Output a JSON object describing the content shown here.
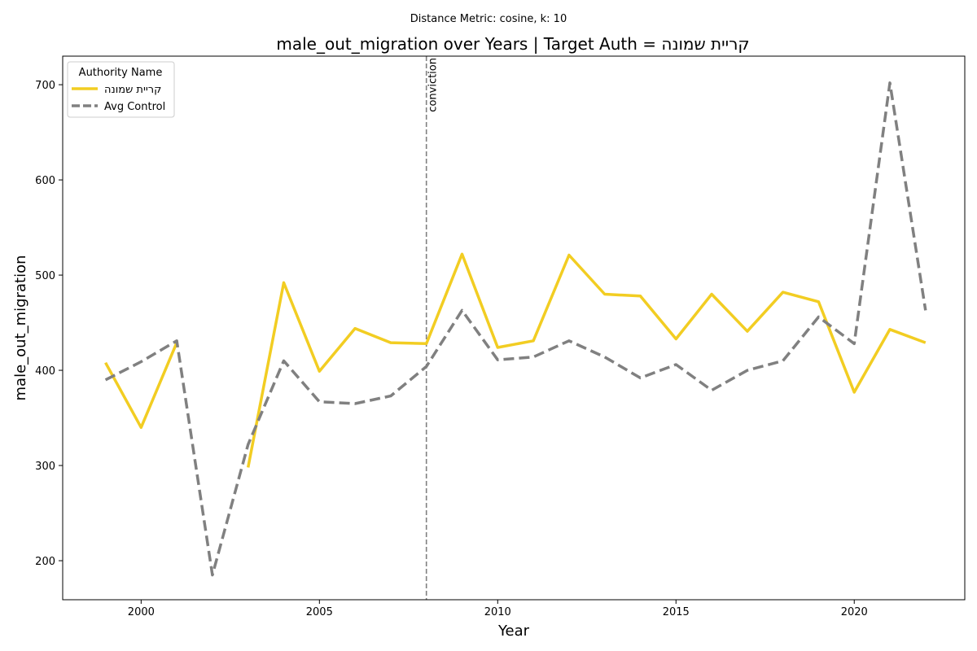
{
  "chart_data": {
    "type": "line",
    "suptitle": "Distance Metric: cosine, k: 10",
    "title": "male_out_migration over Years | Target Auth = קריית שמונה",
    "xlabel": "Year",
    "ylabel": "male_out_migration",
    "xlim": [
      1997.8,
      2023.1
    ],
    "ylim": [
      159,
      730
    ],
    "xticks": [
      2000,
      2005,
      2010,
      2015,
      2020
    ],
    "yticks": [
      200,
      300,
      400,
      500,
      600,
      700
    ],
    "grid": false,
    "legend": {
      "title": "Authority Name",
      "placement": "top-left"
    },
    "x": [
      1999,
      2000,
      2001,
      2002,
      2003,
      2004,
      2005,
      2006,
      2007,
      2008,
      2009,
      2010,
      2011,
      2012,
      2013,
      2014,
      2015,
      2016,
      2017,
      2018,
      2019,
      2020,
      2021,
      2022
    ],
    "series": [
      {
        "name": "קריית שמונה",
        "color": "#f2cd22",
        "style": "solid",
        "values": [
          408,
          340,
          429,
          null,
          298,
          492,
          399,
          444,
          429,
          428,
          522,
          424,
          431,
          521,
          480,
          478,
          433,
          480,
          441,
          482,
          472,
          377,
          443,
          429
        ]
      },
      {
        "name": "Avg Control",
        "color": "#808080",
        "style": "dashed",
        "values": [
          390,
          409,
          431,
          185,
          322,
          410,
          367,
          365,
          373,
          404,
          463,
          411,
          414,
          431,
          414,
          392,
          406,
          379,
          400,
          410,
          456,
          428,
          702,
          463
        ]
      }
    ],
    "annotations": [
      {
        "type": "vline",
        "x": 2008,
        "label": "conviction",
        "color": "#808080"
      }
    ]
  }
}
